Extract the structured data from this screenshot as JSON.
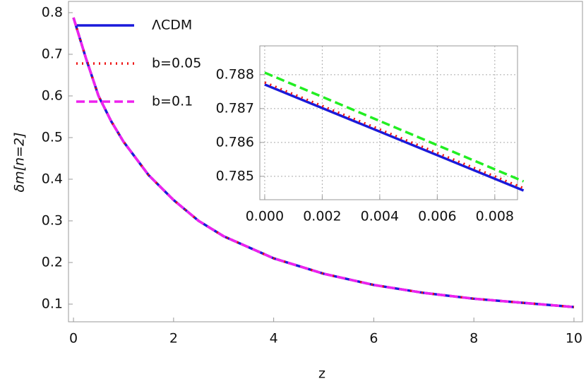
{
  "chart_data": [
    {
      "type": "line",
      "x_label": "z",
      "y_label": "δm[n=2]",
      "x": [
        0,
        0.25,
        0.5,
        0.75,
        1,
        1.5,
        2,
        2.5,
        3,
        4,
        5,
        6,
        7,
        8,
        9,
        10
      ],
      "series": [
        {
          "name": "ΛCDM",
          "color": "#1a1adb",
          "style": "solid",
          "values": [
            0.788,
            0.69,
            0.6,
            0.54,
            0.49,
            0.41,
            0.35,
            0.3,
            0.263,
            0.21,
            0.173,
            0.146,
            0.127,
            0.113,
            0.103,
            0.093
          ]
        },
        {
          "name": "b=0.05",
          "color": "#ee1111",
          "style": "dotted",
          "values": [
            0.788,
            0.69,
            0.6,
            0.54,
            0.49,
            0.41,
            0.35,
            0.3,
            0.263,
            0.21,
            0.173,
            0.146,
            0.127,
            0.113,
            0.103,
            0.093
          ]
        },
        {
          "name": "b=0.1",
          "color": "#ee22ee",
          "style": "dashed",
          "values": [
            0.788,
            0.69,
            0.6,
            0.54,
            0.49,
            0.41,
            0.35,
            0.3,
            0.263,
            0.21,
            0.173,
            0.146,
            0.127,
            0.113,
            0.103,
            0.093
          ]
        }
      ],
      "xlim": [
        -0.1,
        10.17
      ],
      "ylim": [
        0.0576,
        0.827
      ],
      "xticks": [
        0,
        2,
        4,
        6,
        8,
        10
      ],
      "yticks": [
        0.1,
        0.2,
        0.3,
        0.4,
        0.5,
        0.6,
        0.7,
        0.8
      ],
      "legend": "upper left",
      "grid": false
    },
    {
      "type": "line",
      "x": [
        0,
        0.009
      ],
      "series": [
        {
          "color": "#1a1adb",
          "style": "solid",
          "values": [
            0.78771,
            0.78458
          ]
        },
        {
          "color": "#ee1111",
          "style": "dotted",
          "values": [
            0.78777,
            0.78465
          ]
        },
        {
          "color": "#22ee22",
          "style": "dashed",
          "values": [
            0.78806,
            0.78485
          ]
        }
      ],
      "xlim": [
        -0.00017,
        0.00879
      ],
      "ylim": [
        0.78431,
        0.78885
      ],
      "xticks": [
        {
          "value": 0,
          "label": "0.000"
        },
        {
          "value": 0.002,
          "label": "0.002"
        },
        {
          "value": 0.004,
          "label": "0.004"
        },
        {
          "value": 0.006,
          "label": "0.006"
        },
        {
          "value": 0.008,
          "label": "0.008"
        }
      ],
      "yticks": [
        0.785,
        0.786,
        0.787,
        0.788
      ],
      "grid": true
    }
  ]
}
